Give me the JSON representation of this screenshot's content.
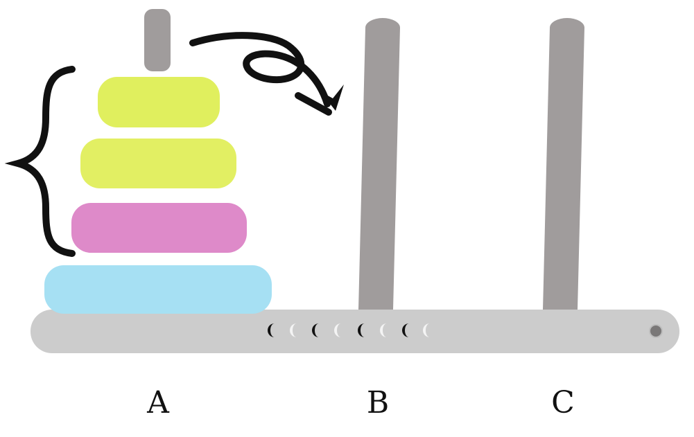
{
  "pegs": {
    "labels": [
      "A",
      "B",
      "C"
    ]
  },
  "disks": [
    {
      "color": "#e0ef5e",
      "role": "top"
    },
    {
      "color": "#e2ef63",
      "role": "second"
    },
    {
      "color": "#de8ac9",
      "role": "third"
    },
    {
      "color": "#a6e0f3",
      "role": "bottom"
    }
  ],
  "colors": {
    "peg": "#a09c9c",
    "base": "#cccccc",
    "arrow": "#111111",
    "brace": "#111111",
    "base_dot": "#7a7878"
  },
  "icons": {
    "arrow": "curved-loop-arrow-icon",
    "brace": "curly-brace-icon"
  }
}
